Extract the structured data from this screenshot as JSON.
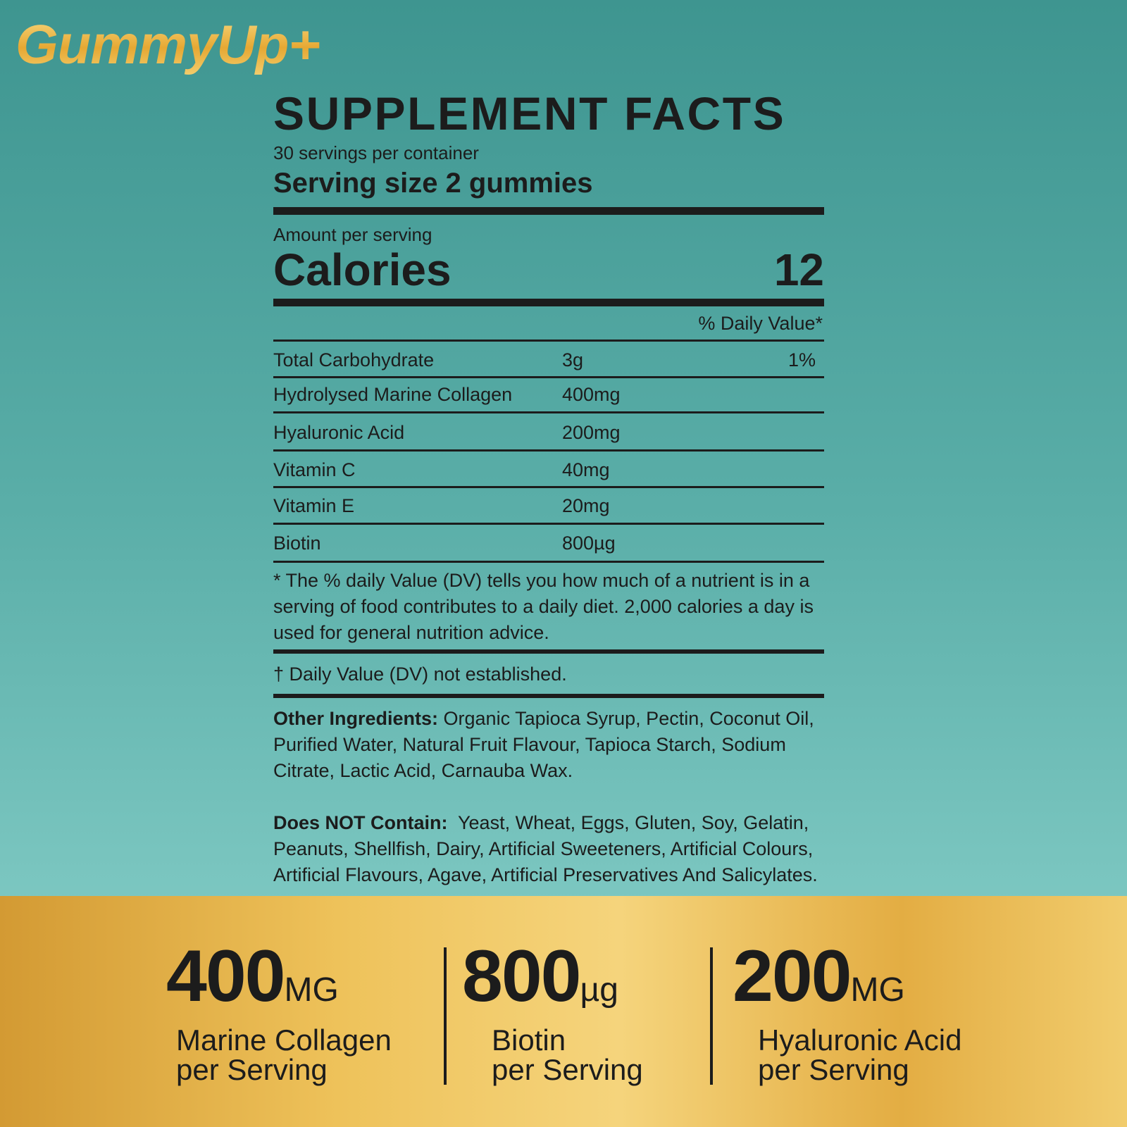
{
  "brand": {
    "logo_text": "GummyUp+"
  },
  "label": {
    "title": "SUPPLEMENT FACTS",
    "servings_per_container": "30 servings per container",
    "serving_size": "Serving size 2 gummies",
    "amount_per_serving": "Amount per serving",
    "calories_label": "Calories",
    "calories_value": "12",
    "daily_value_header": "% Daily Value*",
    "nutrients": [
      {
        "name": "Total Carbohydrate",
        "amount": "3g",
        "dv": "1%"
      },
      {
        "name": "Hydrolysed Marine Collagen",
        "amount": "400mg",
        "dv": ""
      },
      {
        "name": "Hyaluronic Acid",
        "amount": "200mg",
        "dv": ""
      },
      {
        "name": "Vitamin C",
        "amount": "40mg",
        "dv": ""
      },
      {
        "name": "Vitamin E",
        "amount": "20mg",
        "dv": ""
      },
      {
        "name": "Biotin",
        "amount": "800µg",
        "dv": ""
      }
    ],
    "footnote": "* The % daily Value (DV) tells you how much of a nutrient is in a serving of food contributes to a daily diet. 2,000 calories a day is used for general nutrition advice.",
    "dagger_note": "† Daily Value (DV) not established.",
    "other_ingredients_label": "Other Ingredients:",
    "other_ingredients": " Organic Tapioca Syrup, Pectin, Coconut Oil, Purified Water, Natural Fruit Flavour, Tapioca Starch, Sodium Citrate, Lactic Acid, Carnauba Wax.",
    "does_not_contain_label": "Does NOT Contain:",
    "does_not_contain": "  Yeast, Wheat, Eggs, Gluten, Soy, Gelatin, Peanuts, Shellfish, Dairy, Artificial Sweeteners, Artificial Colours, Artificial Flavours, Agave, Artificial Preservatives And Salicylates."
  },
  "highlights": [
    {
      "value": "400",
      "unit": "MG",
      "line1": "Marine Collagen",
      "line2": "per Serving"
    },
    {
      "value": "800",
      "unit": "µg",
      "line1": "Biotin",
      "line2": "per Serving"
    },
    {
      "value": "200",
      "unit": "MG",
      "line1": "Hyaluronic Acid",
      "line2": "per Serving"
    }
  ],
  "colors": {
    "background_teal": "#4fa39d",
    "gold_band": "#eec25a",
    "text": "#1c1c1c"
  }
}
